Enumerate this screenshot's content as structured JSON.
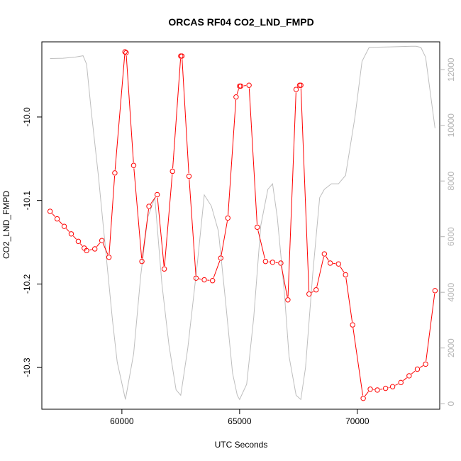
{
  "chart_data": {
    "type": "line",
    "title": "ORCAS RF04 CO2_LND_FMPD",
    "xlabel": "UTC Seconds",
    "ylabel": "CO2_LND_FMPD",
    "xlim": [
      56600,
      73500
    ],
    "ylim": [
      -10.35,
      -9.91
    ],
    "y2lim": [
      -200,
      13000
    ],
    "x_ticks": [
      60000,
      65000,
      70000
    ],
    "y_ticks": [
      -10.3,
      -10.2,
      -10.1,
      -10.0
    ],
    "y2_ticks": [
      0,
      2000,
      4000,
      6000,
      8000,
      10000,
      12000
    ],
    "x_tick_labels": [
      "60000",
      "65000",
      "70000"
    ],
    "y_tick_labels": [
      "-10.3",
      "-10.2",
      "-10.1",
      "-10.0"
    ],
    "y2_tick_labels": [
      "0",
      "2000",
      "4000",
      "6000",
      "8000",
      "10000",
      "12000"
    ],
    "series": [
      {
        "color": "#ff0000",
        "style": "line+points",
        "axis": "left",
        "x": [
          56950,
          57250,
          57550,
          57850,
          58150,
          58400,
          58500,
          58850,
          59150,
          59450,
          59700,
          60130,
          60180,
          60500,
          60850,
          61150,
          61500,
          61800,
          62150,
          62500,
          62550,
          62850,
          63150,
          63500,
          63850,
          64200,
          64500,
          64850,
          65000,
          65050,
          65400,
          65750,
          66100,
          66400,
          66750,
          67050,
          67400,
          67550,
          67600,
          67950,
          68250,
          68600,
          68850,
          69200,
          69500,
          69800,
          70250,
          70550,
          70850,
          71200,
          71500,
          71850,
          72200,
          72550,
          72900,
          73300
        ],
        "y": [
          -10.113,
          -10.122,
          -10.131,
          -10.14,
          -10.149,
          -10.157,
          -10.16,
          -10.158,
          -10.148,
          -10.168,
          -10.067,
          -9.922,
          -9.923,
          -10.058,
          -10.173,
          -10.107,
          -10.093,
          -10.182,
          -10.065,
          -9.927,
          -9.927,
          -10.071,
          -10.193,
          -10.195,
          -10.196,
          -10.169,
          -10.121,
          -9.976,
          -9.963,
          -9.963,
          -9.962,
          -10.132,
          -10.173,
          -10.174,
          -10.175,
          -10.219,
          -9.967,
          -9.962,
          -9.962,
          -10.212,
          -10.207,
          -10.164,
          -10.175,
          -10.176,
          -10.189,
          -10.249,
          -10.337,
          -10.326,
          -10.327,
          -10.325,
          -10.323,
          -10.318,
          -10.31,
          -10.302,
          -10.296,
          -10.208
        ]
      },
      {
        "color": "#bebebe",
        "style": "line",
        "axis": "right",
        "x": [
          56950,
          57500,
          58000,
          58350,
          58500,
          58700,
          59000,
          59300,
          59600,
          59800,
          60150,
          60500,
          60800,
          61100,
          61400,
          61700,
          62000,
          62300,
          62500,
          62800,
          63200,
          63500,
          63800,
          64100,
          64400,
          64700,
          64900,
          65000,
          65300,
          65600,
          65900,
          66200,
          66400,
          66600,
          66900,
          67100,
          67400,
          67600,
          67800,
          68100,
          68400,
          68600,
          68900,
          69200,
          69500,
          69900,
          70200,
          70500,
          70900,
          71400,
          71900,
          72300,
          72500,
          72700,
          72900,
          73300
        ],
        "y": [
          12400,
          12410,
          12450,
          12500,
          12200,
          10500,
          8200,
          5600,
          3000,
          1500,
          150,
          1800,
          4600,
          6700,
          7400,
          4300,
          2100,
          500,
          300,
          2000,
          5000,
          7500,
          7100,
          6200,
          3700,
          1100,
          300,
          150,
          700,
          3100,
          6400,
          7700,
          7900,
          6700,
          4000,
          1700,
          300,
          150,
          1300,
          4600,
          7400,
          7700,
          7900,
          7900,
          8200,
          10300,
          12300,
          12800,
          12810,
          12820,
          12830,
          12840,
          12840,
          12800,
          12450,
          9900
        ]
      }
    ]
  }
}
